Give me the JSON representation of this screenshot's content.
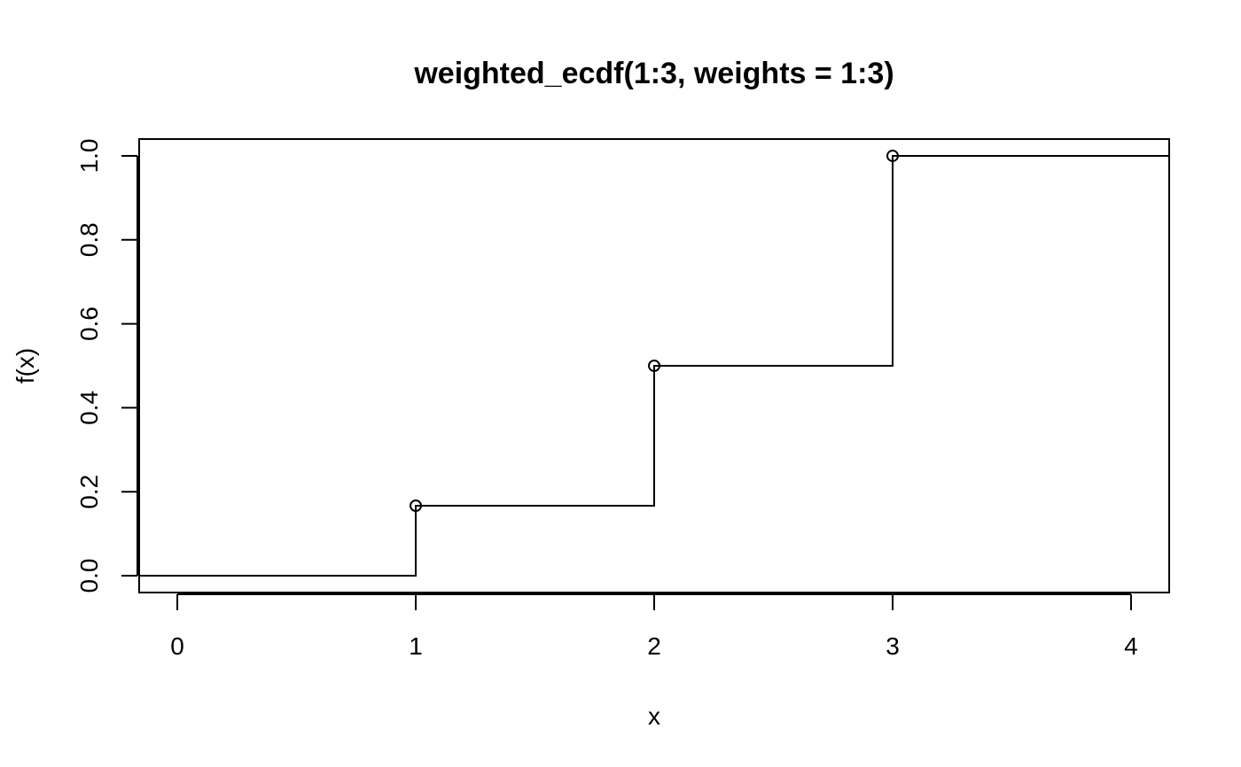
{
  "chart_data": {
    "type": "line",
    "title": "weighted_ecdf(1:3, weights = 1:3)",
    "xlabel": "x",
    "ylabel": "f(x)",
    "xlim": [
      -0.16,
      4.16
    ],
    "ylim": [
      -0.04,
      1.04
    ],
    "x_ticks": [
      0,
      1,
      2,
      3,
      4
    ],
    "x_tick_labels": [
      "0",
      "1",
      "2",
      "3",
      "4"
    ],
    "y_ticks": [
      0,
      0.2,
      0.4,
      0.6,
      0.8,
      1.0
    ],
    "y_tick_labels": [
      "0.0",
      "0.2",
      "0.4",
      "0.6",
      "0.8",
      "1.0"
    ],
    "grid": false,
    "legend": "none",
    "series": [
      {
        "style": "step",
        "x": [
          -0.16,
          1,
          1,
          2,
          2,
          3,
          3,
          4.16
        ],
        "y": [
          0,
          0,
          0.1667,
          0.1667,
          0.5,
          0.5,
          1.0,
          1.0
        ]
      }
    ],
    "points": {
      "marker": "open-circle",
      "x": [
        1,
        2,
        3
      ],
      "y": [
        0.1667,
        0.5,
        1.0
      ]
    },
    "colors": {
      "line": "#000000",
      "background": "#ffffff"
    }
  }
}
